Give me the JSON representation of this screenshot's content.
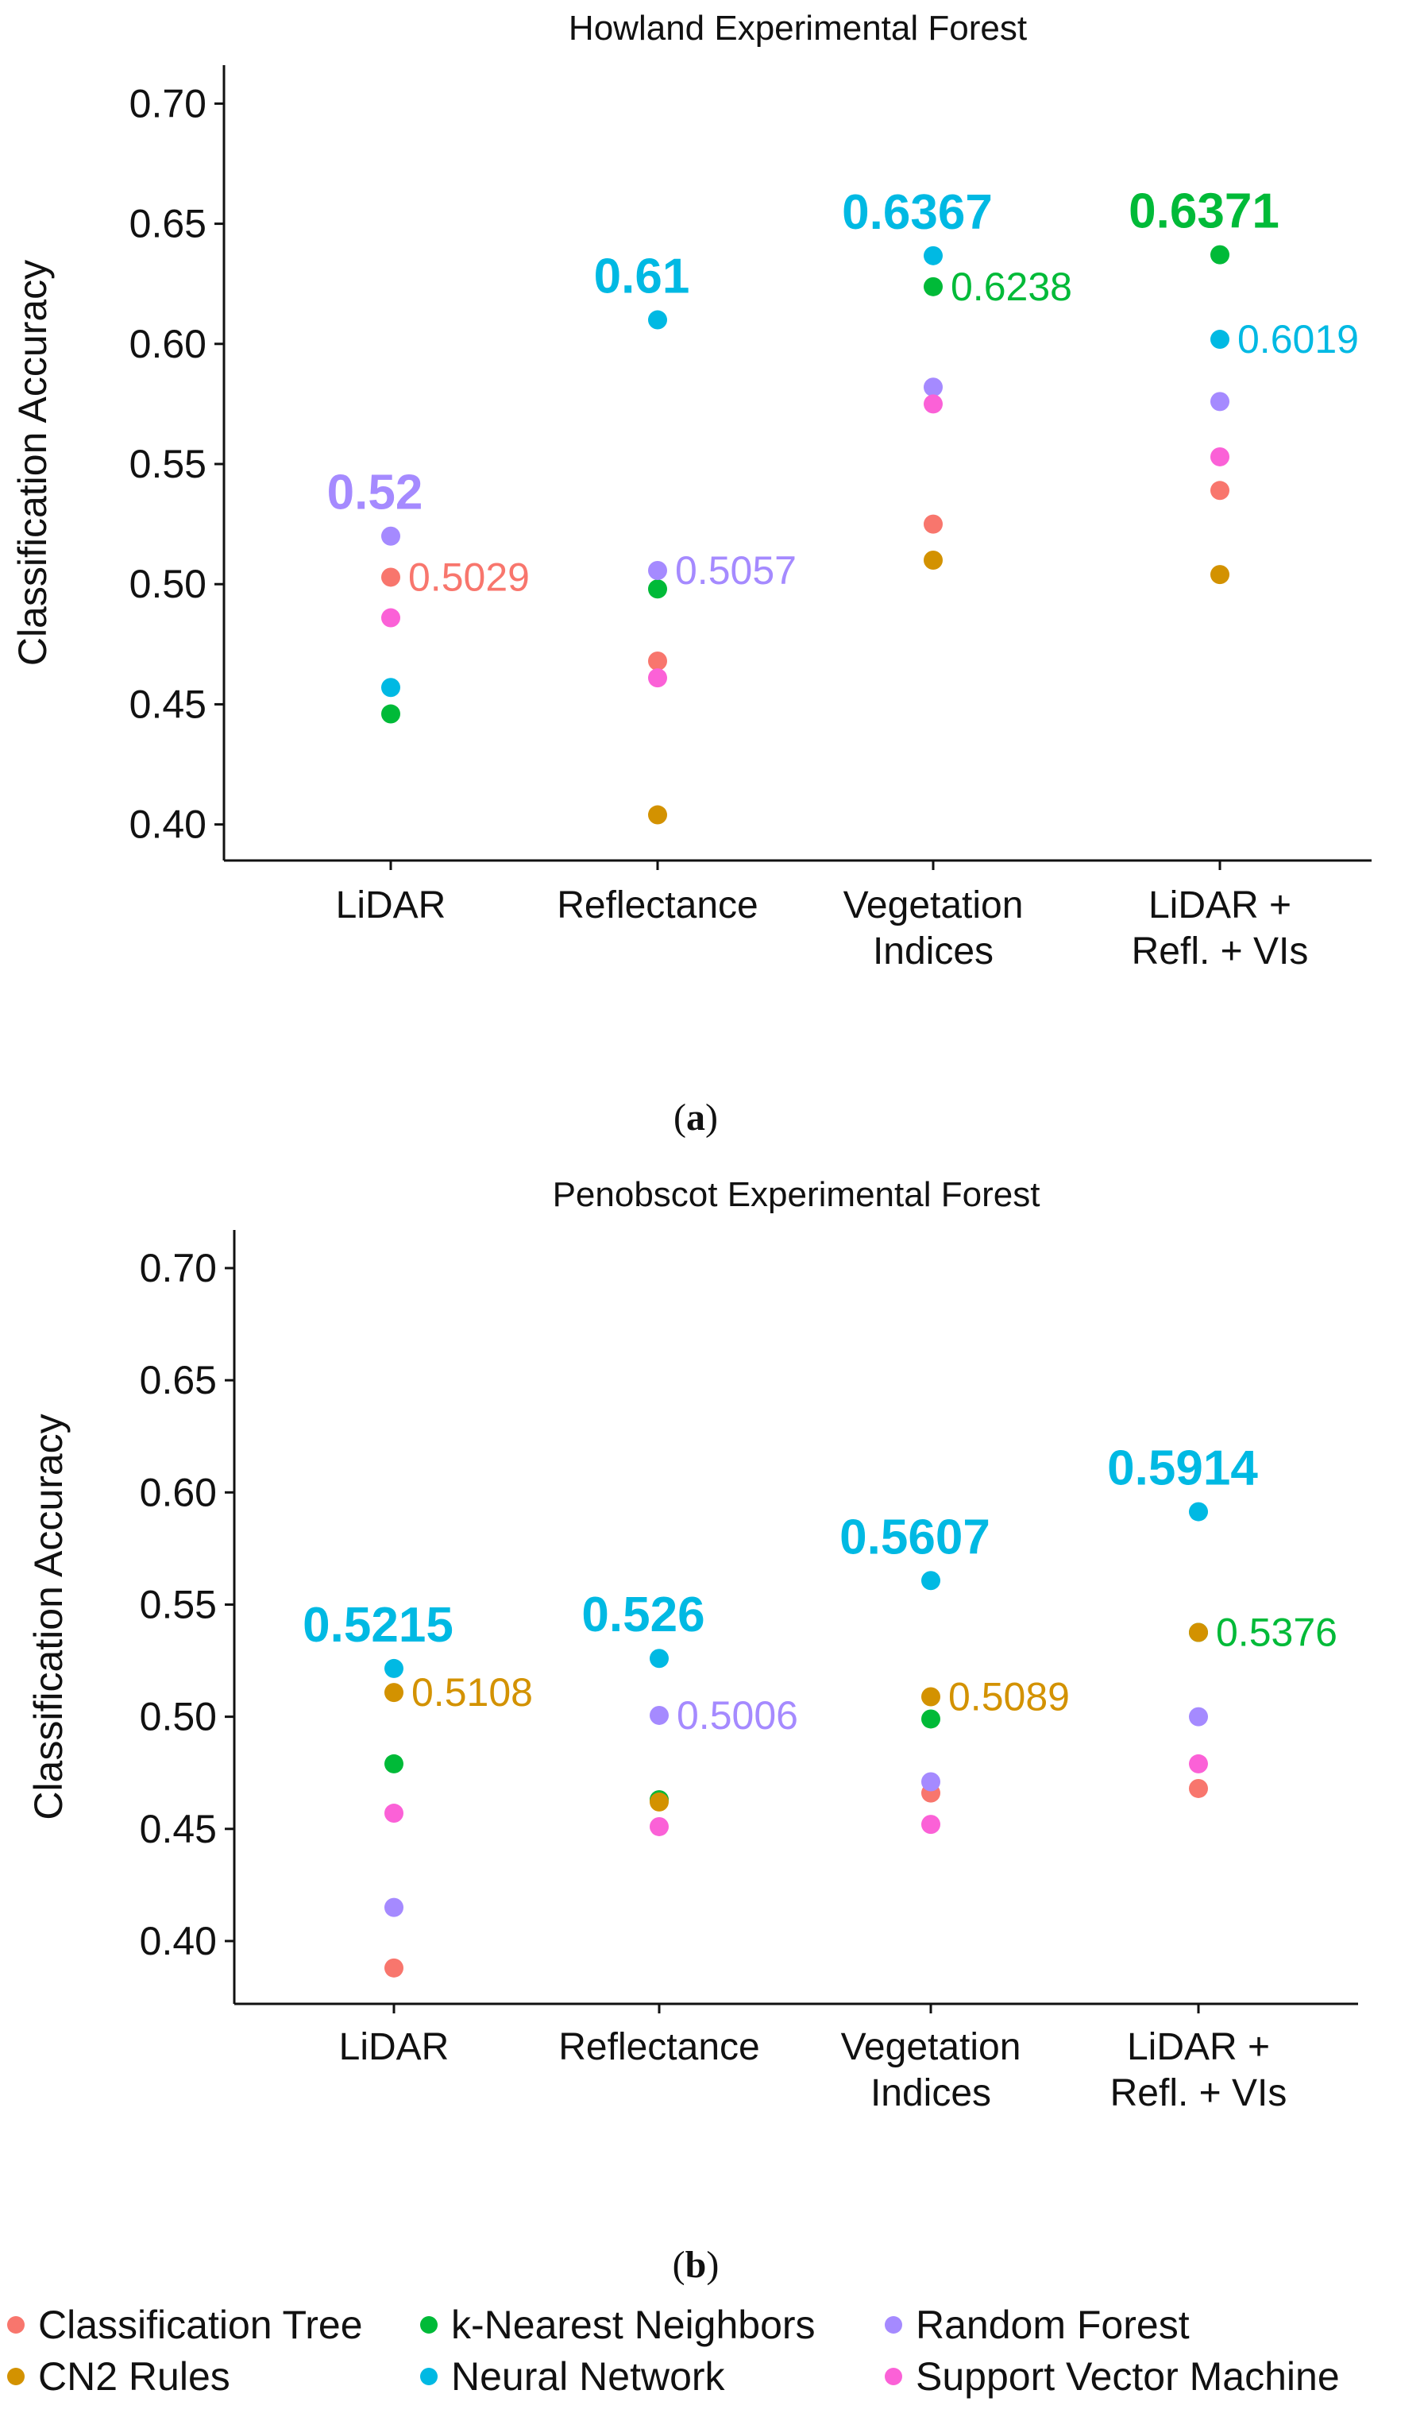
{
  "colors": {
    "Classification Tree": "#F8766D",
    "k-Nearest Neighbors": "#00BA38",
    "Random Forest": "#A58AFF",
    "CN2 Rules": "#D39200",
    "Neural Network": "#00B9E3",
    "Support Vector Machine": "#FB61D7"
  },
  "legend": {
    "items": [
      "Classification Tree",
      "k-Nearest Neighbors",
      "Random Forest",
      "CN2 Rules",
      "Neural Network",
      "Support Vector Machine"
    ]
  },
  "chart_data": [
    {
      "type": "scatter",
      "title": "Howland Experimental Forest",
      "caption_open": "(",
      "caption_letter": "a",
      "caption_close": ")",
      "ylabel": "Classification Accuracy",
      "ylim": [
        0.385,
        0.716
      ],
      "yticks": [
        "0.40",
        "0.45",
        "0.50",
        "0.55",
        "0.60",
        "0.65",
        "0.70"
      ],
      "categories": [
        [
          "LiDAR"
        ],
        [
          "Reflectance"
        ],
        [
          "Vegetation",
          "Indices"
        ],
        [
          "LiDAR +",
          "Refl. + VIs"
        ]
      ],
      "series": [
        {
          "name": "Classification Tree",
          "values": [
            0.5029,
            0.468,
            0.525,
            0.539
          ]
        },
        {
          "name": "k-Nearest Neighbors",
          "values": [
            0.446,
            0.498,
            0.6238,
            0.6371
          ]
        },
        {
          "name": "Random Forest",
          "values": [
            0.52,
            0.5057,
            0.582,
            0.576
          ]
        },
        {
          "name": "CN2 Rules",
          "values": [
            null,
            0.404,
            0.51,
            0.504
          ]
        },
        {
          "name": "Neural Network",
          "values": [
            0.457,
            0.61,
            0.6367,
            0.6019
          ]
        },
        {
          "name": "Support Vector Machine",
          "values": [
            0.486,
            0.461,
            0.575,
            0.553
          ]
        }
      ],
      "best_labels": [
        {
          "category": 0,
          "text": "0.52",
          "series": "Random Forest"
        },
        {
          "category": 1,
          "text": "0.61",
          "series": "Neural Network"
        },
        {
          "category": 2,
          "text": "0.6367",
          "series": "Neural Network"
        },
        {
          "category": 3,
          "text": "0.6371",
          "series": "k-Nearest Neighbors"
        }
      ],
      "second_labels": [
        {
          "category": 0,
          "text": "0.5029",
          "series": "Classification Tree"
        },
        {
          "category": 1,
          "text": "0.5057",
          "series": "Random Forest"
        },
        {
          "category": 2,
          "text": "0.6238",
          "series": "k-Nearest Neighbors"
        },
        {
          "category": 3,
          "text": "0.6019",
          "series": "Neural Network"
        }
      ]
    },
    {
      "type": "scatter",
      "title": "Penobscot Experimental Forest",
      "caption_open": "(",
      "caption_letter": "b",
      "caption_close": ")",
      "ylabel": "Classification Accuracy",
      "ylim": [
        0.372,
        0.717
      ],
      "yticks": [
        "0.40",
        "0.45",
        "0.50",
        "0.55",
        "0.60",
        "0.65",
        "0.70"
      ],
      "categories": [
        [
          "LiDAR"
        ],
        [
          "Reflectance"
        ],
        [
          "Vegetation",
          "Indices"
        ],
        [
          "LiDAR +",
          "Refl. + VIs"
        ]
      ],
      "series": [
        {
          "name": "Classification Tree",
          "values": [
            0.388,
            0.463,
            0.466,
            0.468
          ]
        },
        {
          "name": "k-Nearest Neighbors",
          "values": [
            0.479,
            0.463,
            0.499,
            0.5376
          ]
        },
        {
          "name": "Random Forest",
          "values": [
            0.415,
            0.5006,
            0.471,
            0.5
          ]
        },
        {
          "name": "CN2 Rules",
          "values": [
            0.5108,
            0.462,
            0.5089,
            0.5376
          ]
        },
        {
          "name": "Neural Network",
          "values": [
            0.5215,
            0.526,
            0.5607,
            0.5914
          ]
        },
        {
          "name": "Support Vector Machine",
          "values": [
            0.457,
            0.451,
            0.452,
            0.479
          ]
        }
      ],
      "best_labels": [
        {
          "category": 0,
          "text": "0.5215",
          "series": "Neural Network"
        },
        {
          "category": 1,
          "text": "0.526",
          "series": "Neural Network"
        },
        {
          "category": 2,
          "text": "0.5607",
          "series": "Neural Network"
        },
        {
          "category": 3,
          "text": "0.5914",
          "series": "Neural Network"
        }
      ],
      "second_labels": [
        {
          "category": 0,
          "text": "0.5108",
          "series": "CN2 Rules"
        },
        {
          "category": 1,
          "text": "0.5006",
          "series": "Random Forest"
        },
        {
          "category": 2,
          "text": "0.5089",
          "series": "CN2 Rules"
        },
        {
          "category": 3,
          "text": "0.5376",
          "series": "k-Nearest Neighbors"
        }
      ]
    }
  ]
}
